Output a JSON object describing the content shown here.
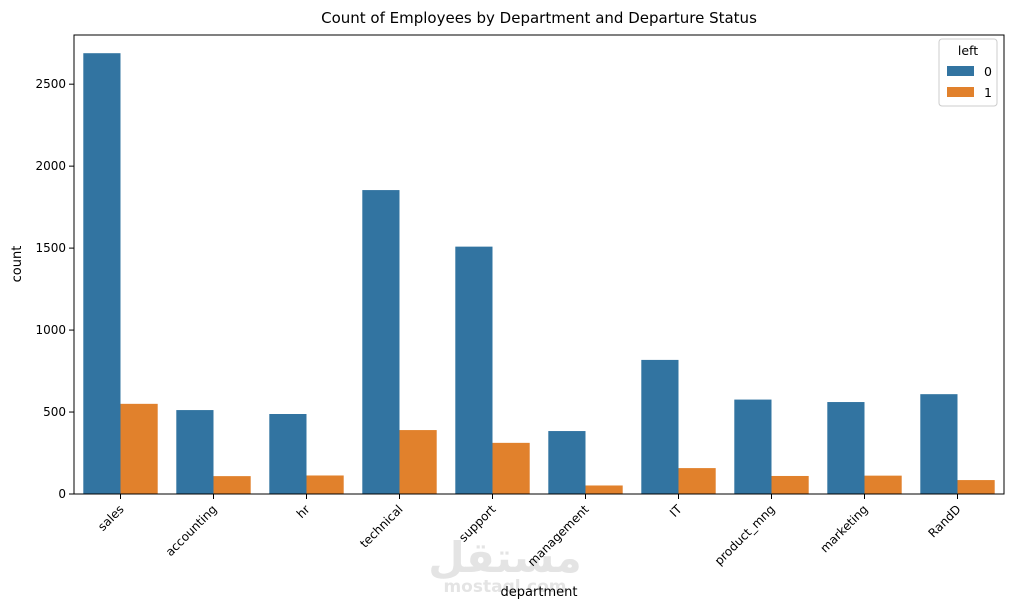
{
  "chart_data": {
    "type": "bar",
    "title": "Count of Employees by Department and Departure Status",
    "xlabel": "department",
    "ylabel": "count",
    "categories": [
      "sales",
      "accounting",
      "hr",
      "technical",
      "support",
      "management",
      "IT",
      "product_mng",
      "marketing",
      "RandD"
    ],
    "series": [
      {
        "name": "0",
        "color": "#3274a1",
        "values": [
          2689,
          512,
          488,
          1854,
          1509,
          384,
          818,
          576,
          561,
          609
        ]
      },
      {
        "name": "1",
        "color": "#e1812c",
        "values": [
          550,
          109,
          113,
          390,
          312,
          52,
          158,
          110,
          112,
          85
        ]
      }
    ],
    "ylim": [
      0,
      2800
    ],
    "yticks": [
      0,
      500,
      1000,
      1500,
      2000,
      2500
    ],
    "legend": {
      "title": "left",
      "position": "top-right"
    },
    "grid": false
  },
  "watermark": {
    "arabic": "مستقل",
    "latin": "mostaql.com"
  }
}
